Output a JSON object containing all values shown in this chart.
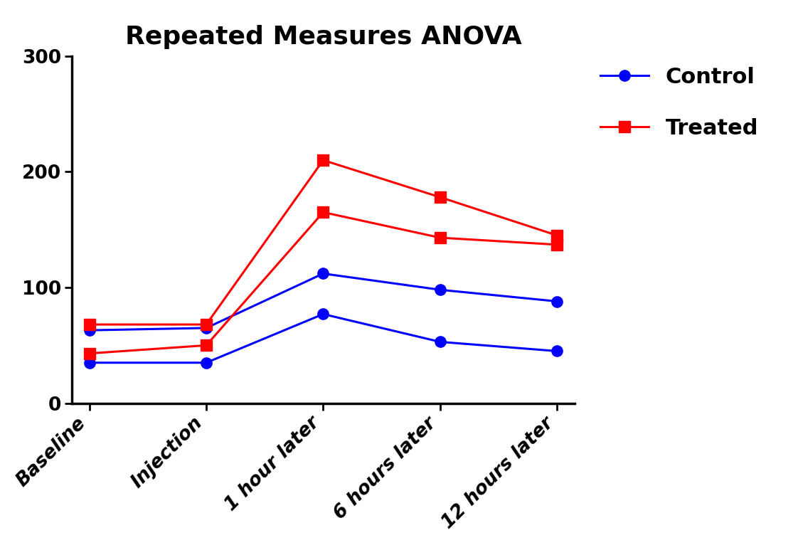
{
  "title": "Repeated Measures ANOVA",
  "x_labels": [
    "Baseline",
    "Injection",
    "1 hour later",
    "6 hours later",
    "12 hours later"
  ],
  "control_line1": [
    63,
    65,
    112,
    98,
    88
  ],
  "control_line2": [
    35,
    35,
    77,
    53,
    45
  ],
  "treated_line1": [
    68,
    68,
    210,
    178,
    145
  ],
  "treated_line2": [
    43,
    50,
    165,
    143,
    137
  ],
  "control_color": "#0000FF",
  "treated_color": "#FF0000",
  "ylim": [
    0,
    300
  ],
  "yticks": [
    0,
    100,
    200,
    300
  ],
  "title_fontsize": 26,
  "tick_fontsize": 19,
  "legend_fontsize": 22,
  "marker_size": 11,
  "line_width": 2.2,
  "background_color": "#FFFFFF"
}
